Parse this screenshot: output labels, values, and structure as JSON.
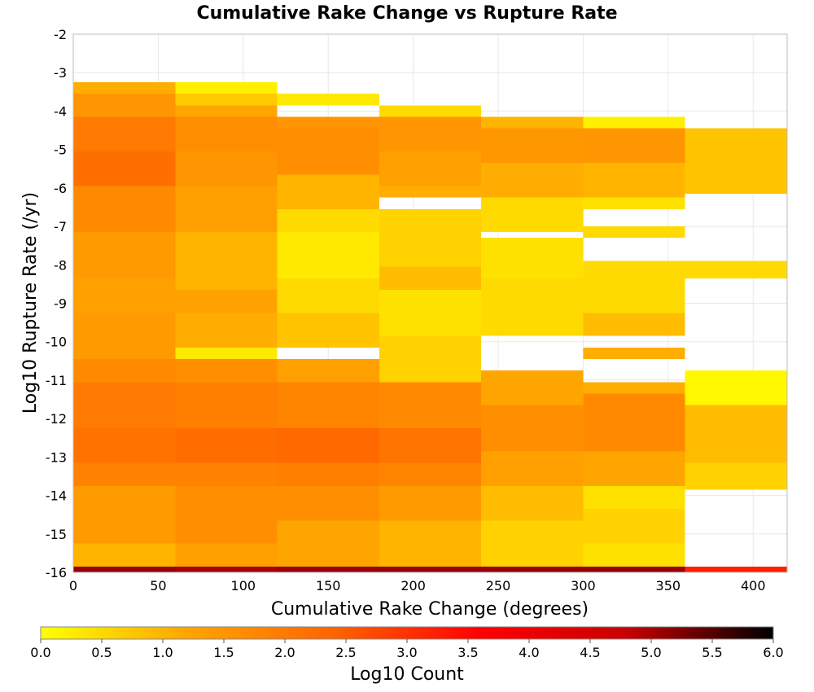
{
  "chart_data": {
    "type": "heatmap",
    "title": "Cumulative Rake Change vs Rupture Rate",
    "xlabel": "Cumulative Rake Change (degrees)",
    "ylabel": "Log10 Rupture Rate (/yr)",
    "xlim": [
      0,
      420
    ],
    "ylim": [
      -16,
      -2
    ],
    "x_ticks": [
      0,
      50,
      100,
      150,
      200,
      250,
      300,
      350,
      400
    ],
    "y_ticks": [
      -2,
      -3,
      -4,
      -5,
      -6,
      -7,
      -8,
      -9,
      -10,
      -11,
      -12,
      -13,
      -14,
      -15,
      -16
    ],
    "x_bin_width": 60,
    "y_bin_width": 0.3,
    "grid": true,
    "colorbar": {
      "label": "Log10 Count",
      "range": [
        0.0,
        6.0
      ],
      "ticks": [
        "0.0",
        "0.5",
        "1.0",
        "1.5",
        "2.0",
        "2.5",
        "3.0",
        "3.5",
        "4.0",
        "4.5",
        "5.0",
        "5.5",
        "6.0"
      ],
      "colors": [
        "#ffff00",
        "#ffa500",
        "#ff6400",
        "#ff0000",
        "#c80000",
        "#000000"
      ]
    },
    "columns": [
      {
        "x_start": 0,
        "segments": [
          {
            "y": [
              -3.55,
              -3.25
            ],
            "log_count": 1.1
          },
          {
            "y": [
              -4.15,
              -3.55
            ],
            "log_count": 1.5
          },
          {
            "y": [
              -5.05,
              -4.15
            ],
            "log_count": 2.0
          },
          {
            "y": [
              -5.95,
              -5.05
            ],
            "log_count": 2.2
          },
          {
            "y": [
              -7.15,
              -5.95
            ],
            "log_count": 1.7
          },
          {
            "y": [
              -8.35,
              -7.15
            ],
            "log_count": 1.4
          },
          {
            "y": [
              -9.25,
              -8.35
            ],
            "log_count": 1.3
          },
          {
            "y": [
              -10.45,
              -9.25
            ],
            "log_count": 1.4
          },
          {
            "y": [
              -11.05,
              -10.45
            ],
            "log_count": 1.7
          },
          {
            "y": [
              -12.25,
              -11.05
            ],
            "log_count": 2.0
          },
          {
            "y": [
              -13.15,
              -12.25
            ],
            "log_count": 2.15
          },
          {
            "y": [
              -13.75,
              -13.15
            ],
            "log_count": 1.85
          },
          {
            "y": [
              -15.25,
              -13.75
            ],
            "log_count": 1.4
          },
          {
            "y": [
              -15.85,
              -15.25
            ],
            "log_count": 1.0
          },
          {
            "y": [
              -16.0,
              -15.85
            ],
            "log_count": 5.1
          }
        ]
      },
      {
        "x_start": 60,
        "segments": [
          {
            "y": [
              -3.55,
              -3.25
            ],
            "log_count": 0.2
          },
          {
            "y": [
              -3.85,
              -3.55
            ],
            "log_count": 0.7
          },
          {
            "y": [
              -4.15,
              -3.85
            ],
            "log_count": 1.2
          },
          {
            "y": [
              -5.05,
              -4.15
            ],
            "log_count": 1.65
          },
          {
            "y": [
              -5.95,
              -5.05
            ],
            "log_count": 1.5
          },
          {
            "y": [
              -7.15,
              -5.95
            ],
            "log_count": 1.3
          },
          {
            "y": [
              -8.65,
              -7.15
            ],
            "log_count": 1.0
          },
          {
            "y": [
              -9.25,
              -8.65
            ],
            "log_count": 1.25
          },
          {
            "y": [
              -10.15,
              -9.25
            ],
            "log_count": 1.1
          },
          {
            "y": [
              -10.45,
              -10.15
            ],
            "log_count": 0.3
          },
          {
            "y": [
              -11.05,
              -10.45
            ],
            "log_count": 1.6
          },
          {
            "y": [
              -12.25,
              -11.05
            ],
            "log_count": 1.9
          },
          {
            "y": [
              -13.15,
              -12.25
            ],
            "log_count": 2.25
          },
          {
            "y": [
              -13.75,
              -13.15
            ],
            "log_count": 1.85
          },
          {
            "y": [
              -15.25,
              -13.75
            ],
            "log_count": 1.6
          },
          {
            "y": [
              -15.85,
              -15.25
            ],
            "log_count": 1.3
          },
          {
            "y": [
              -16.0,
              -15.85
            ],
            "log_count": 5.0
          }
        ]
      },
      {
        "x_start": 120,
        "segments": [
          {
            "y": [
              -3.85,
              -3.55
            ],
            "log_count": 0.3
          },
          {
            "y": [
              -4.45,
              -4.15
            ],
            "log_count": 1.5
          },
          {
            "y": [
              -5.65,
              -4.45
            ],
            "log_count": 1.6
          },
          {
            "y": [
              -6.55,
              -5.65
            ],
            "log_count": 1.0
          },
          {
            "y": [
              -7.15,
              -6.55
            ],
            "log_count": 0.5
          },
          {
            "y": [
              -8.35,
              -7.15
            ],
            "log_count": 0.3
          },
          {
            "y": [
              -9.25,
              -8.35
            ],
            "log_count": 0.5
          },
          {
            "y": [
              -10.15,
              -9.25
            ],
            "log_count": 0.8
          },
          {
            "y": [
              -11.05,
              -10.45
            ],
            "log_count": 1.3
          },
          {
            "y": [
              -12.25,
              -11.05
            ],
            "log_count": 1.8
          },
          {
            "y": [
              -13.15,
              -12.25
            ],
            "log_count": 2.3
          },
          {
            "y": [
              -13.75,
              -13.15
            ],
            "log_count": 1.9
          },
          {
            "y": [
              -14.65,
              -13.75
            ],
            "log_count": 1.6
          },
          {
            "y": [
              -15.85,
              -14.65
            ],
            "log_count": 1.2
          },
          {
            "y": [
              -16.0,
              -15.85
            ],
            "log_count": 5.1
          }
        ]
      },
      {
        "x_start": 180,
        "segments": [
          {
            "y": [
              -4.15,
              -3.85
            ],
            "log_count": 0.5
          },
          {
            "y": [
              -5.05,
              -4.15
            ],
            "log_count": 1.5
          },
          {
            "y": [
              -5.95,
              -5.05
            ],
            "log_count": 1.3
          },
          {
            "y": [
              -6.25,
              -5.95
            ],
            "log_count": 1.1
          },
          {
            "y": [
              -8.05,
              -6.55
            ],
            "log_count": 0.6
          },
          {
            "y": [
              -8.65,
              -8.05
            ],
            "log_count": 0.9
          },
          {
            "y": [
              -9.85,
              -8.65
            ],
            "log_count": 0.4
          },
          {
            "y": [
              -11.05,
              -9.85
            ],
            "log_count": 0.6
          },
          {
            "y": [
              -12.25,
              -11.05
            ],
            "log_count": 1.7
          },
          {
            "y": [
              -13.15,
              -12.25
            ],
            "log_count": 2.1
          },
          {
            "y": [
              -13.75,
              -13.15
            ],
            "log_count": 1.8
          },
          {
            "y": [
              -14.65,
              -13.75
            ],
            "log_count": 1.4
          },
          {
            "y": [
              -15.85,
              -14.65
            ],
            "log_count": 1.0
          },
          {
            "y": [
              -16.0,
              -15.85
            ],
            "log_count": 5.1
          }
        ]
      },
      {
        "x_start": 240,
        "segments": [
          {
            "y": [
              -4.45,
              -4.15
            ],
            "log_count": 1.0
          },
          {
            "y": [
              -5.35,
              -4.45
            ],
            "log_count": 1.45
          },
          {
            "y": [
              -6.25,
              -5.35
            ],
            "log_count": 1.1
          },
          {
            "y": [
              -7.15,
              -6.25
            ],
            "log_count": 0.5
          },
          {
            "y": [
              -8.35,
              -7.3
            ],
            "log_count": 0.4
          },
          {
            "y": [
              -9.85,
              -8.35
            ],
            "log_count": 0.5
          },
          {
            "y": [
              -11.65,
              -10.75
            ],
            "log_count": 1.2
          },
          {
            "y": [
              -12.85,
              -11.65
            ],
            "log_count": 1.6
          },
          {
            "y": [
              -13.75,
              -12.85
            ],
            "log_count": 1.3
          },
          {
            "y": [
              -14.65,
              -13.75
            ],
            "log_count": 0.9
          },
          {
            "y": [
              -15.85,
              -14.65
            ],
            "log_count": 0.6
          },
          {
            "y": [
              -16.0,
              -15.85
            ],
            "log_count": 5.1
          }
        ]
      },
      {
        "x_start": 300,
        "segments": [
          {
            "y": [
              -4.45,
              -4.15
            ],
            "log_count": 0.2
          },
          {
            "y": [
              -5.35,
              -4.45
            ],
            "log_count": 1.5
          },
          {
            "y": [
              -6.25,
              -5.35
            ],
            "log_count": 1.0
          },
          {
            "y": [
              -6.55,
              -6.25
            ],
            "log_count": 0.4
          },
          {
            "y": [
              -7.3,
              -7.0
            ],
            "log_count": 0.5
          },
          {
            "y": [
              -9.25,
              -7.9
            ],
            "log_count": 0.5
          },
          {
            "y": [
              -9.85,
              -9.25
            ],
            "log_count": 0.9
          },
          {
            "y": [
              -10.45,
              -10.15
            ],
            "log_count": 1.1
          },
          {
            "y": [
              -11.35,
              -11.05
            ],
            "log_count": 1.1
          },
          {
            "y": [
              -12.85,
              -11.35
            ],
            "log_count": 1.7
          },
          {
            "y": [
              -13.75,
              -12.85
            ],
            "log_count": 1.2
          },
          {
            "y": [
              -14.35,
              -13.75
            ],
            "log_count": 0.4
          },
          {
            "y": [
              -15.25,
              -14.35
            ],
            "log_count": 0.6
          },
          {
            "y": [
              -15.85,
              -15.25
            ],
            "log_count": 0.4
          },
          {
            "y": [
              -16.0,
              -15.85
            ],
            "log_count": 5.1
          }
        ]
      },
      {
        "x_start": 360,
        "segments": [
          {
            "y": [
              -6.15,
              -4.45
            ],
            "log_count": 0.8
          },
          {
            "y": [
              -8.35,
              -7.9
            ],
            "log_count": 0.5
          },
          {
            "y": [
              -11.65,
              -10.75
            ],
            "log_count": 0.1
          },
          {
            "y": [
              -13.15,
              -11.65
            ],
            "log_count": 0.9
          },
          {
            "y": [
              -13.85,
              -13.15
            ],
            "log_count": 0.6
          },
          {
            "y": [
              -16.0,
              -15.85
            ],
            "log_count": 3.2
          }
        ]
      }
    ]
  }
}
